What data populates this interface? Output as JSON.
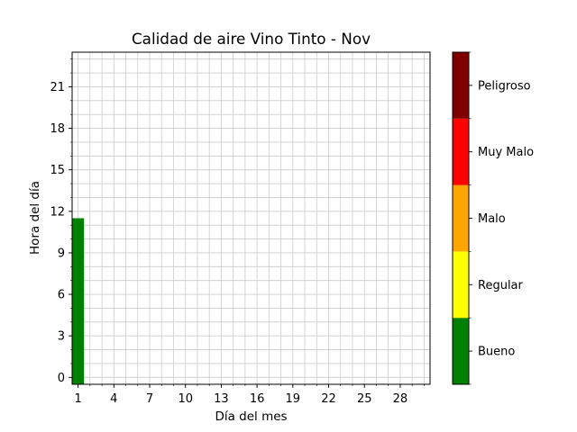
{
  "chart_data": {
    "type": "heatmap",
    "title": "Calidad de aire Vino Tinto - Nov",
    "xlabel": "Día del mes",
    "ylabel": "Hora del día",
    "xlim": [
      0.5,
      30.5
    ],
    "ylim": [
      -0.5,
      23.5
    ],
    "x_ticks": [
      1,
      4,
      7,
      10,
      13,
      16,
      19,
      22,
      25,
      28
    ],
    "y_ticks": [
      0,
      3,
      6,
      9,
      12,
      15,
      18,
      21
    ],
    "grid": true,
    "cells": [
      {
        "day": 1,
        "hour_start": 0,
        "hour_end": 11,
        "category": "Bueno"
      }
    ],
    "colorbar": {
      "categories": [
        {
          "label": "Bueno",
          "color": "#008000"
        },
        {
          "label": "Regular",
          "color": "#ffff00"
        },
        {
          "label": "Malo",
          "color": "#ffa500"
        },
        {
          "label": "Muy Malo",
          "color": "#ff0000"
        },
        {
          "label": "Peligroso",
          "color": "#800000"
        }
      ]
    }
  }
}
